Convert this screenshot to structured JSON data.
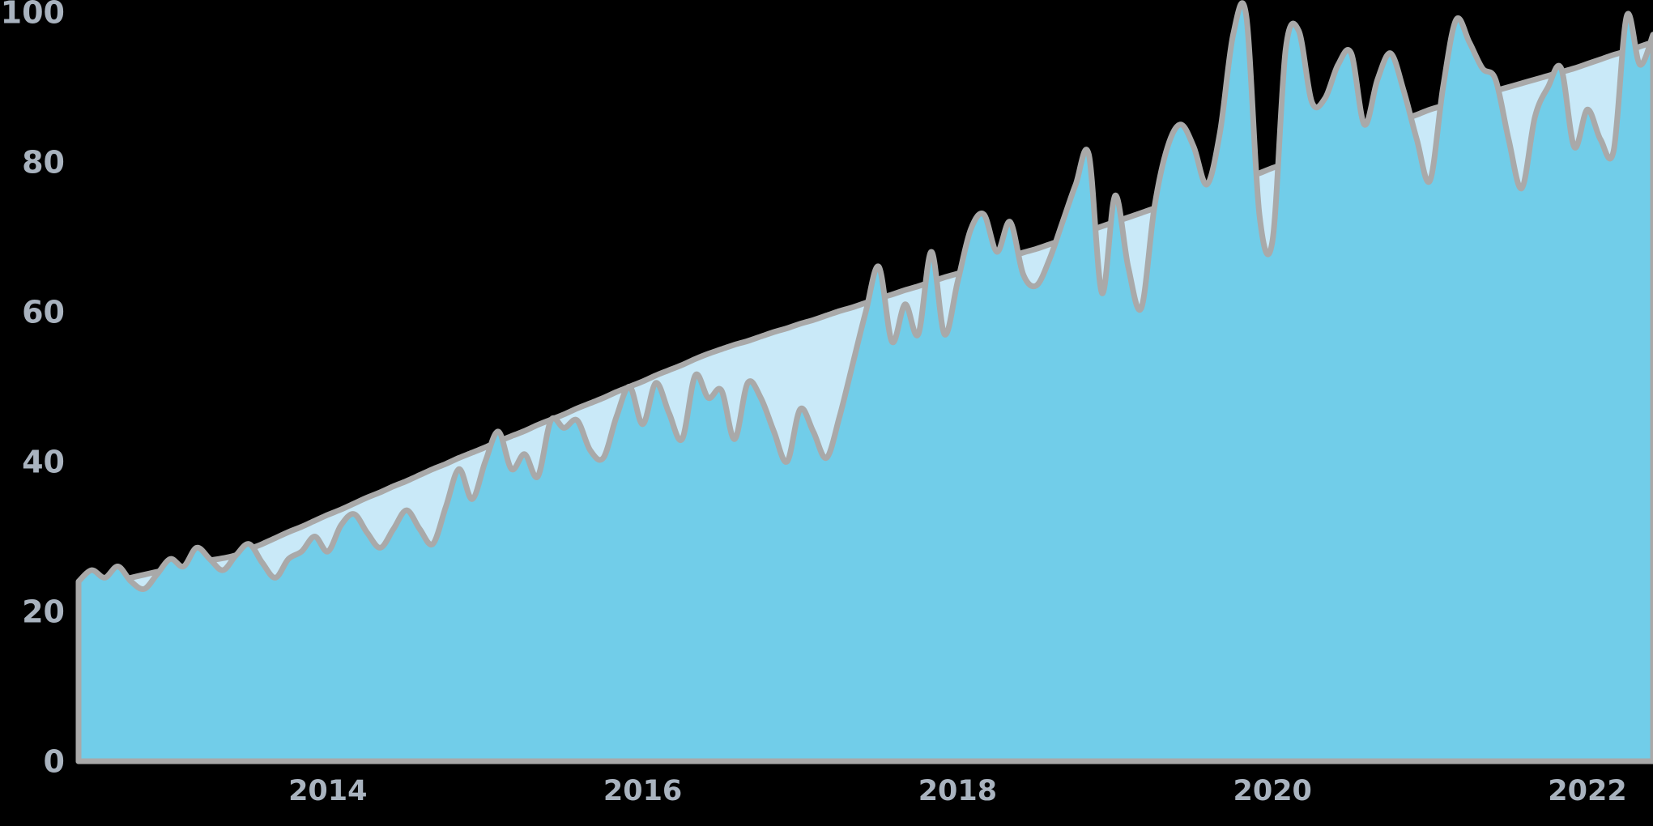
{
  "chart_data": {
    "type": "area",
    "title": "",
    "xlabel": "",
    "ylabel": "",
    "ylim": [
      0,
      100
    ],
    "background_color": "#000000",
    "label_color": "#A9B3BF",
    "stroke_color": "#A9A9A9",
    "grid": "off",
    "legend": "none",
    "y_ticks": [
      0,
      20,
      40,
      60,
      80,
      100
    ],
    "y_tick_labels": [
      "0",
      "20",
      "40",
      "60",
      "80",
      "100"
    ],
    "x_tick_labels": [
      "2014",
      "2016",
      "2018",
      "2020",
      "2022"
    ],
    "x_tick_indices": [
      19,
      43,
      67,
      91,
      115
    ],
    "points_per_year": 12,
    "x_range_note": "monthly points, mid-2012 to mid-2022",
    "series": [
      {
        "name": "smooth-trend-area",
        "fill_color": "#C9E9F8",
        "values": [
          23,
          23.4,
          23.8,
          24.1,
          24.5,
          24.9,
          25.3,
          25.6,
          26,
          26.4,
          26.8,
          27.1,
          27.5,
          28.3,
          29,
          29.8,
          30.6,
          31.3,
          32.1,
          32.9,
          33.6,
          34.4,
          35.2,
          35.9,
          36.7,
          37.4,
          38.2,
          39,
          39.7,
          40.5,
          41.2,
          41.9,
          42.7,
          43.4,
          44.1,
          44.9,
          45.6,
          46.3,
          47.1,
          47.8,
          48.5,
          49.3,
          50,
          50.7,
          51.5,
          52.2,
          52.9,
          53.7,
          54.4,
          55,
          55.6,
          56.1,
          56.7,
          57.3,
          57.8,
          58.4,
          58.9,
          59.5,
          60.1,
          60.6,
          61.2,
          61.8,
          62.3,
          62.9,
          63.4,
          64,
          64.6,
          65.1,
          65.7,
          66.2,
          66.8,
          67.3,
          67.9,
          68.4,
          69,
          69.6,
          70.2,
          70.8,
          71.4,
          72,
          72.6,
          73.2,
          73.8,
          74.3,
          74.9,
          75.5,
          76.1,
          76.7,
          77.3,
          77.9,
          78.5,
          79.2,
          79.8,
          80.5,
          81.1,
          81.8,
          82.4,
          83.1,
          83.7,
          84.4,
          85,
          85.7,
          86.3,
          87,
          87.5,
          88,
          88.5,
          89,
          89.5,
          90,
          90.5,
          91,
          91.5,
          92,
          92.5,
          93.1,
          93.7,
          94.3,
          94.8,
          95.4,
          96
        ]
      },
      {
        "name": "monthly-values-area",
        "fill_color": "#71CDE9",
        "values": [
          24,
          25.5,
          24.5,
          26,
          24,
          23,
          25,
          27,
          26,
          28.5,
          27,
          25.5,
          27.5,
          29,
          26.5,
          24.5,
          27,
          28,
          30,
          28,
          31.5,
          33,
          30.5,
          28.5,
          31,
          33.5,
          31,
          29,
          34,
          39,
          35,
          40,
          44,
          39,
          41,
          38,
          45.5,
          44.5,
          45.5,
          41.5,
          40.5,
          46,
          50,
          45,
          50.5,
          46.5,
          43,
          51.5,
          48.5,
          49.5,
          43,
          50.5,
          48.5,
          44,
          40,
          47,
          44,
          40.5,
          46,
          53,
          60,
          66,
          56,
          61,
          57,
          68,
          57,
          64,
          71,
          73,
          68,
          72,
          65,
          63.5,
          67,
          72,
          77,
          81,
          62.5,
          75.5,
          66,
          60.5,
          74,
          82,
          85,
          82,
          77,
          84,
          97,
          99.5,
          73,
          69.5,
          95,
          97.5,
          88,
          88.5,
          93,
          94.5,
          85,
          91,
          94.5,
          89.5,
          83,
          77.5,
          90,
          99,
          96,
          92.5,
          91,
          83,
          76.5,
          86,
          90,
          92.5,
          82,
          87,
          83,
          81.5,
          99.5,
          93,
          97
        ]
      }
    ]
  }
}
